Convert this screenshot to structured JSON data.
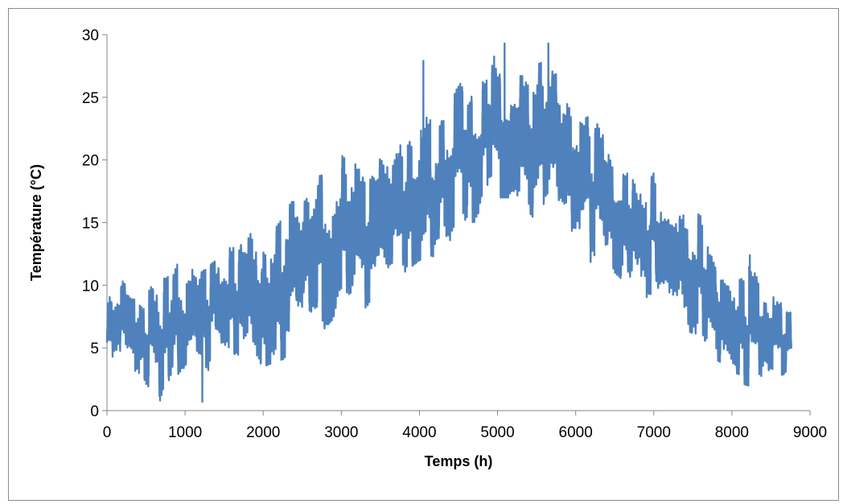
{
  "chart_data": {
    "type": "line",
    "title": "",
    "xlabel": "Temps (h)",
    "ylabel": "Température (°C)",
    "xlim": [
      0,
      9000
    ],
    "ylim": [
      0,
      30
    ],
    "x_ticks": [
      0,
      1000,
      2000,
      3000,
      4000,
      5000,
      6000,
      7000,
      8000,
      9000
    ],
    "y_ticks": [
      0,
      5,
      10,
      15,
      20,
      25,
      30
    ],
    "x_tick_labels": [
      "0",
      "1000",
      "2000",
      "3000",
      "4000",
      "5000",
      "6000",
      "7000",
      "8000",
      "9000"
    ],
    "y_tick_labels": [
      "0",
      "5",
      "10",
      "15",
      "20",
      "25",
      "30"
    ],
    "grid": false,
    "legend": "none",
    "line_color": "#4f81bd",
    "series": [
      {
        "x_start": 0,
        "x_end": 8760,
        "x_step": 1,
        "envelope": {
          "x": [
            0,
            100,
            300,
            500,
            700,
            900,
            1000,
            1200,
            1500,
            1700,
            2000,
            2200,
            2500,
            2700,
            3000,
            3300,
            3500,
            3800,
            4000,
            4300,
            4500,
            4800,
            5000,
            5200,
            5500,
            5700,
            6000,
            6300,
            6500,
            6800,
            7000,
            7200,
            7500,
            7700,
            8000,
            8200,
            8400,
            8600,
            8760
          ],
          "min": [
            3.8,
            4.5,
            3.0,
            2.0,
            1.0,
            2.5,
            3.2,
            1.0,
            4.0,
            4.0,
            3.5,
            4.0,
            4.5,
            6.0,
            8.0,
            8.0,
            9.0,
            11.0,
            12.0,
            12.5,
            13.0,
            16.0,
            17.0,
            17.0,
            14.0,
            15.0,
            13.0,
            11.0,
            10.0,
            8.5,
            9.5,
            8.0,
            5.5,
            4.5,
            2.5,
            2.0,
            2.0,
            2.5,
            3.5
          ],
          "max": [
            9.5,
            11.0,
            10.5,
            9.5,
            11.0,
            13.5,
            11.5,
            11.0,
            12.5,
            15.0,
            16.0,
            17.8,
            16.0,
            20.5,
            21.5,
            20.0,
            22.0,
            22.5,
            27.5,
            23.0,
            26.0,
            27.0,
            29.0,
            28.8,
            27.5,
            29.0,
            24.5,
            23.0,
            21.0,
            18.5,
            19.0,
            17.5,
            16.5,
            14.5,
            11.0,
            12.5,
            10.0,
            9.0,
            8.5
          ],
          "mean": [
            6.5,
            7.5,
            7.0,
            6.0,
            5.5,
            7.5,
            7.5,
            7.0,
            8.5,
            9.0,
            9.0,
            10.0,
            10.5,
            12.5,
            14.0,
            14.0,
            15.5,
            16.5,
            18.0,
            18.5,
            19.5,
            21.0,
            22.5,
            22.0,
            20.5,
            21.5,
            19.0,
            17.0,
            15.5,
            13.5,
            14.0,
            13.0,
            11.0,
            9.5,
            7.0,
            6.5,
            6.0,
            5.5,
            5.5
          ]
        },
        "notable_points": [
          {
            "x": 4050,
            "y": 27.9
          },
          {
            "x": 5090,
            "y": 29.3
          },
          {
            "x": 5650,
            "y": 29.3
          },
          {
            "x": 680,
            "y": 0.8
          },
          {
            "x": 1220,
            "y": 0.7
          },
          {
            "x": 8230,
            "y": 12.4
          }
        ]
      }
    ]
  }
}
